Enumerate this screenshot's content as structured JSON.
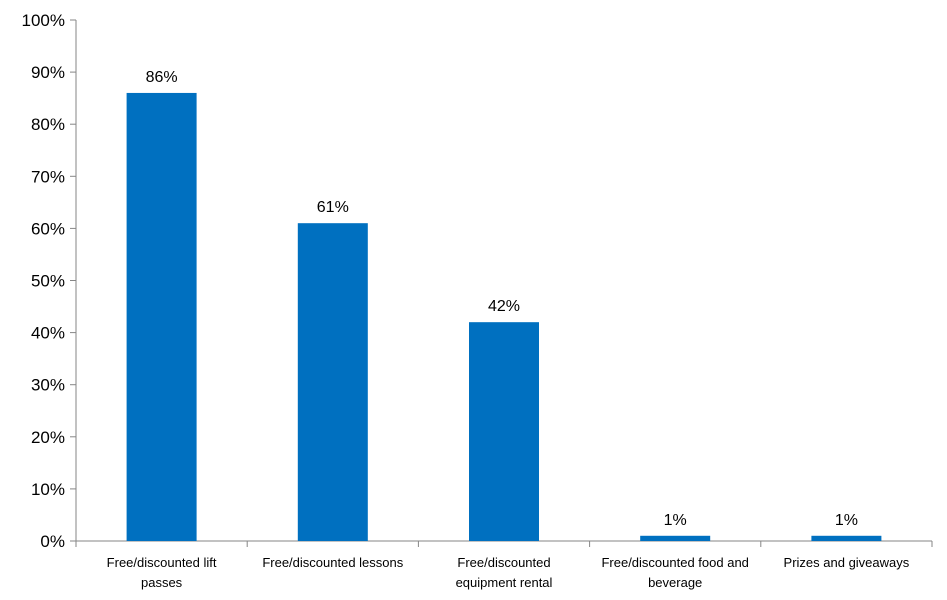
{
  "chart_data": {
    "type": "bar",
    "title": "",
    "xlabel": "",
    "ylabel": "",
    "ylim": [
      0,
      100
    ],
    "y_ticks": [
      "0%",
      "10%",
      "20%",
      "30%",
      "40%",
      "50%",
      "60%",
      "70%",
      "80%",
      "90%",
      "100%"
    ],
    "categories": [
      [
        "Free/discounted lift",
        "passes"
      ],
      [
        "Free/discounted lessons"
      ],
      [
        "Free/discounted",
        "equipment rental"
      ],
      [
        "Free/discounted food and",
        "beverage"
      ],
      [
        "Prizes and giveaways"
      ]
    ],
    "values": [
      86,
      61,
      42,
      1,
      1
    ],
    "data_labels": [
      "86%",
      "61%",
      "42%",
      "1%",
      "1%"
    ],
    "bar_color": "#0070C0",
    "axis_color": "#868686",
    "grid": false,
    "legend": "none"
  }
}
